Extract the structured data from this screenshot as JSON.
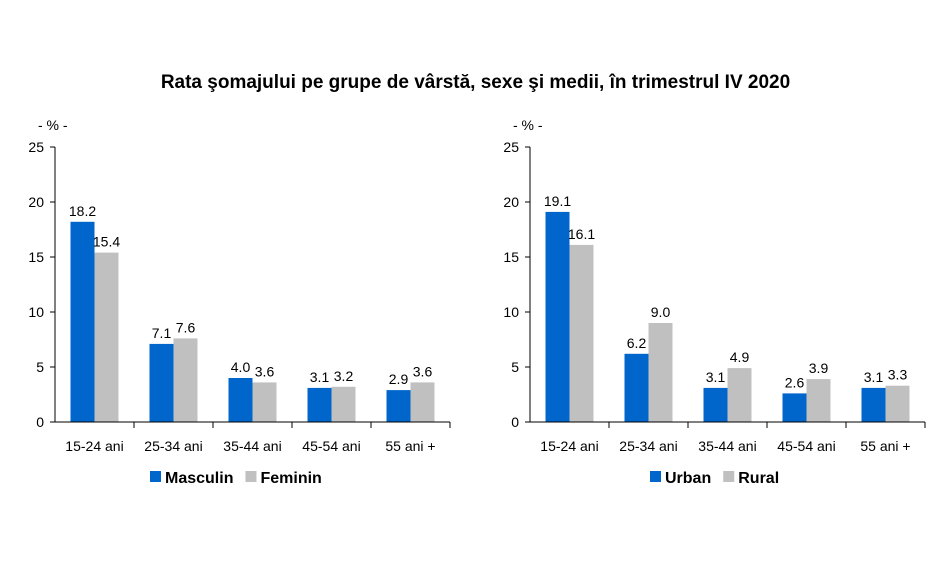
{
  "title": "Rata şomajului pe grupe de vârstă, sexe şi medii, în trimestrul IV 2020",
  "chart_data": [
    {
      "type": "bar",
      "unit_label": "- % -",
      "categories": [
        "15-24 ani",
        "25-34 ani",
        "35-44 ani",
        "45-54 ani",
        "55 ani +"
      ],
      "series": [
        {
          "name": "Masculin",
          "values": [
            18.2,
            7.1,
            4.0,
            3.1,
            2.9
          ],
          "labels": [
            "18.2",
            "7.1",
            "4.0",
            "3.1",
            "2.9"
          ]
        },
        {
          "name": "Feminin",
          "values": [
            15.4,
            7.6,
            3.6,
            3.2,
            3.6
          ],
          "labels": [
            "15.4",
            "7.6",
            "3.6",
            "3.2",
            "3.6"
          ]
        }
      ],
      "yticks": [
        "0",
        "5",
        "10",
        "15",
        "20",
        "25"
      ],
      "ylim": [
        0,
        25
      ],
      "grid": false,
      "legend": "bottom"
    },
    {
      "type": "bar",
      "unit_label": "- % -",
      "categories": [
        "15-24 ani",
        "25-34 ani",
        "35-44 ani",
        "45-54 ani",
        "55 ani +"
      ],
      "series": [
        {
          "name": "Urban",
          "values": [
            19.1,
            6.2,
            3.1,
            2.6,
            3.1
          ],
          "labels": [
            "19.1",
            "6.2",
            "3.1",
            "2.6",
            "3.1"
          ]
        },
        {
          "name": "Rural",
          "values": [
            16.1,
            9.0,
            4.9,
            3.9,
            3.3
          ],
          "labels": [
            "16.1",
            "9.0",
            "4.9",
            "3.9",
            "3.3"
          ]
        }
      ],
      "yticks": [
        "0",
        "5",
        "10",
        "15",
        "20",
        "25"
      ],
      "ylim": [
        0,
        25
      ],
      "grid": false,
      "legend": "bottom"
    }
  ],
  "colors": {
    "series1": "#0066CC",
    "series2": "#C0C0C0"
  }
}
